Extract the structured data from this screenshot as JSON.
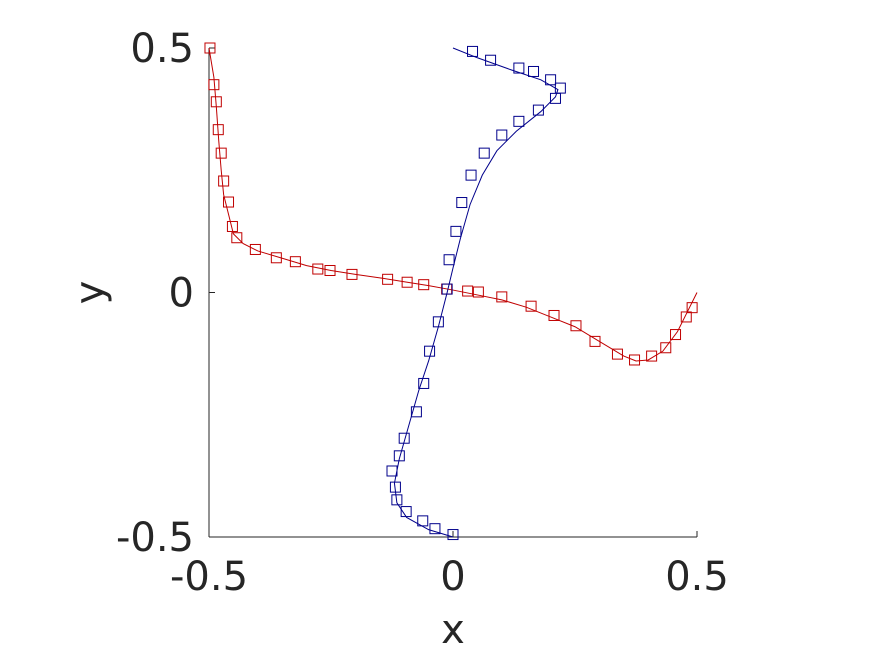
{
  "chart_data": {
    "type": "line",
    "xlabel": "x",
    "ylabel": "y",
    "xlim": [
      -0.5,
      0.5
    ],
    "ylim": [
      -0.5,
      0.5
    ],
    "xticks": [
      -0.5,
      0,
      0.5
    ],
    "yticks": [
      -0.5,
      0,
      0.5
    ],
    "xtick_labels": [
      "-0.5",
      "0",
      "0.5"
    ],
    "ytick_labels": [
      "-0.5",
      "0",
      "0.5"
    ],
    "grid": false,
    "legend": "none",
    "marker": "square",
    "series": [
      {
        "color": "#c00000",
        "line": [
          [
            -0.5,
            0.5
          ],
          [
            -0.49,
            0.44
          ],
          [
            -0.485,
            0.38
          ],
          [
            -0.48,
            0.31
          ],
          [
            -0.475,
            0.25
          ],
          [
            -0.47,
            0.2
          ],
          [
            -0.46,
            0.16
          ],
          [
            -0.45,
            0.12
          ],
          [
            -0.43,
            0.1
          ],
          [
            -0.4,
            0.085
          ],
          [
            -0.35,
            0.07
          ],
          [
            -0.3,
            0.055
          ],
          [
            -0.25,
            0.045
          ],
          [
            -0.2,
            0.037
          ],
          [
            -0.15,
            0.03
          ],
          [
            -0.1,
            0.022
          ],
          [
            -0.05,
            0.014
          ],
          [
            0,
            0.005
          ],
          [
            0.05,
            -0.005
          ],
          [
            0.1,
            -0.015
          ],
          [
            0.15,
            -0.03
          ],
          [
            0.2,
            -0.05
          ],
          [
            0.25,
            -0.07
          ],
          [
            0.3,
            -0.1
          ],
          [
            0.35,
            -0.13
          ],
          [
            0.375,
            -0.14
          ],
          [
            0.4,
            -0.138
          ],
          [
            0.43,
            -0.12
          ],
          [
            0.46,
            -0.08
          ],
          [
            0.48,
            -0.04
          ],
          [
            0.5,
            0.0
          ]
        ],
        "points": [
          [
            -0.498,
            0.5
          ],
          [
            -0.49,
            0.425
          ],
          [
            -0.485,
            0.39
          ],
          [
            -0.481,
            0.333
          ],
          [
            -0.475,
            0.285
          ],
          [
            -0.47,
            0.228
          ],
          [
            -0.46,
            0.185
          ],
          [
            -0.452,
            0.135
          ],
          [
            -0.443,
            0.112
          ],
          [
            -0.405,
            0.088
          ],
          [
            -0.362,
            0.071
          ],
          [
            -0.323,
            0.063
          ],
          [
            -0.277,
            0.048
          ],
          [
            -0.252,
            0.045
          ],
          [
            -0.207,
            0.037
          ],
          [
            -0.134,
            0.027
          ],
          [
            -0.094,
            0.021
          ],
          [
            -0.06,
            0.016
          ],
          [
            -0.013,
            0.007
          ],
          [
            0.03,
            0.003
          ],
          [
            0.052,
            0.001
          ],
          [
            0.1,
            -0.009
          ],
          [
            0.16,
            -0.028
          ],
          [
            0.207,
            -0.047
          ],
          [
            0.252,
            -0.068
          ],
          [
            0.291,
            -0.1
          ],
          [
            0.337,
            -0.126
          ],
          [
            0.372,
            -0.138
          ],
          [
            0.407,
            -0.13
          ],
          [
            0.436,
            -0.113
          ],
          [
            0.456,
            -0.086
          ],
          [
            0.478,
            -0.05
          ],
          [
            0.49,
            -0.031
          ]
        ]
      },
      {
        "color": "#00008b",
        "line": [
          [
            0.0,
            0.5
          ],
          [
            0.05,
            0.48
          ],
          [
            0.12,
            0.455
          ],
          [
            0.18,
            0.435
          ],
          [
            0.215,
            0.415
          ],
          [
            0.21,
            0.4
          ],
          [
            0.18,
            0.37
          ],
          [
            0.13,
            0.33
          ],
          [
            0.09,
            0.29
          ],
          [
            0.06,
            0.24
          ],
          [
            0.035,
            0.18
          ],
          [
            0.015,
            0.11
          ],
          [
            0.0,
            0.05
          ],
          [
            -0.012,
            0.0
          ],
          [
            -0.03,
            -0.07
          ],
          [
            -0.05,
            -0.14
          ],
          [
            -0.07,
            -0.2
          ],
          [
            -0.09,
            -0.27
          ],
          [
            -0.11,
            -0.34
          ],
          [
            -0.12,
            -0.39
          ],
          [
            -0.115,
            -0.43
          ],
          [
            -0.095,
            -0.46
          ],
          [
            -0.05,
            -0.485
          ],
          [
            0.0,
            -0.5
          ]
        ],
        "points": [
          [
            0.04,
            0.493
          ],
          [
            0.077,
            0.475
          ],
          [
            0.135,
            0.459
          ],
          [
            0.165,
            0.452
          ],
          [
            0.2,
            0.435
          ],
          [
            0.22,
            0.418
          ],
          [
            0.21,
            0.397
          ],
          [
            0.175,
            0.373
          ],
          [
            0.135,
            0.35
          ],
          [
            0.1,
            0.322
          ],
          [
            0.064,
            0.285
          ],
          [
            0.037,
            0.24
          ],
          [
            0.018,
            0.184
          ],
          [
            0.006,
            0.125
          ],
          [
            -0.008,
            0.067
          ],
          [
            -0.012,
            0.007
          ],
          [
            -0.03,
            -0.06
          ],
          [
            -0.048,
            -0.12
          ],
          [
            -0.06,
            -0.186
          ],
          [
            -0.075,
            -0.244
          ],
          [
            -0.1,
            -0.298
          ],
          [
            -0.11,
            -0.334
          ],
          [
            -0.125,
            -0.365
          ],
          [
            -0.118,
            -0.398
          ],
          [
            -0.115,
            -0.424
          ],
          [
            -0.096,
            -0.448
          ],
          [
            -0.062,
            -0.467
          ],
          [
            -0.037,
            -0.483
          ],
          [
            0.0,
            -0.495
          ]
        ]
      }
    ]
  }
}
